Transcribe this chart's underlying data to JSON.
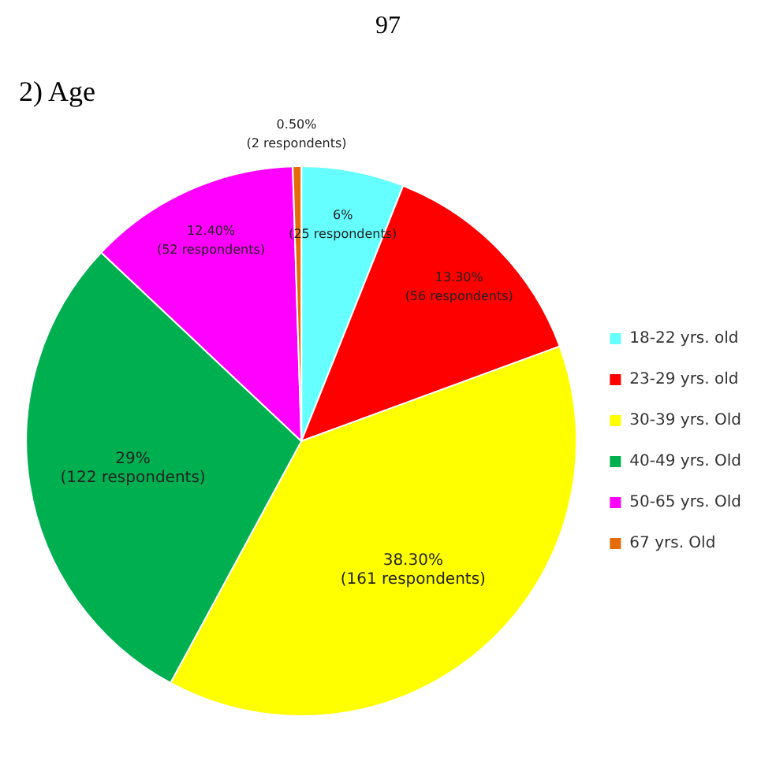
{
  "chart_data": {
    "type": "pie",
    "title": "2)  Age",
    "annotations": [
      "97"
    ],
    "categories": [
      "18-22 yrs. old",
      "23-29 yrs. old",
      "30-39 yrs. Old",
      "40-49 yrs. Old",
      "50-65 yrs. Old",
      "67 yrs. Old"
    ],
    "values": [
      6,
      13.3,
      38.3,
      29,
      12.4,
      0.5
    ],
    "colors": [
      "#66ffff",
      "#ff0000",
      "#ffff00",
      "#00b050",
      "#ff00ff",
      "#e46c0a"
    ],
    "value_labels": [
      "6% (25 respondents)",
      "13.30% (56 respondents)",
      "38.30% (161 respondents)",
      "29% (122 respondents)",
      "12.40% (52 respondents)",
      "0.50% (2 respondents)"
    ],
    "legend": "right"
  }
}
